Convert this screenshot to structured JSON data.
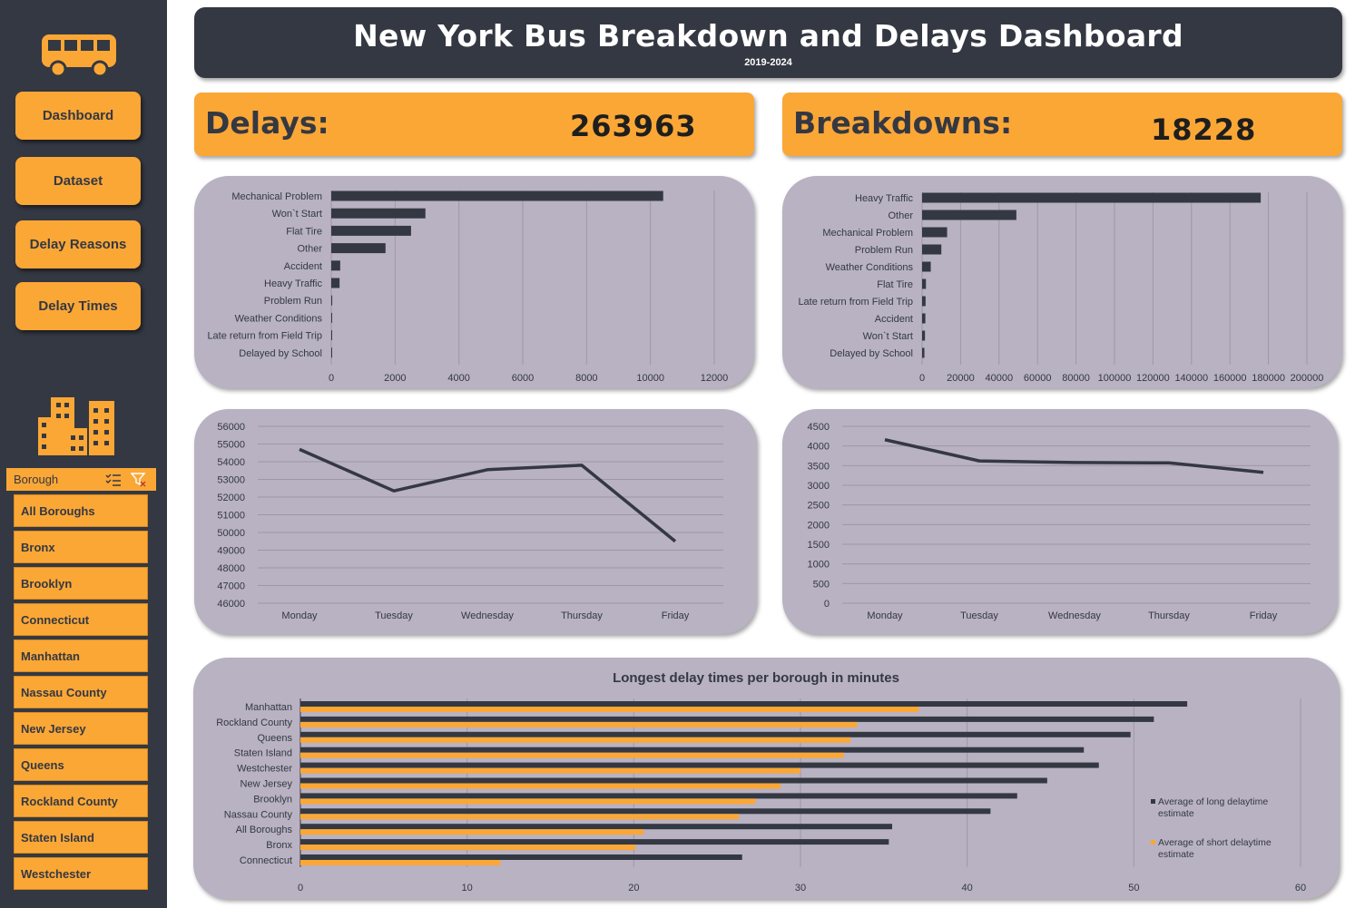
{
  "header": {
    "title": "New York Bus Breakdown and Delays Dashboard",
    "subtitle": "2019-2024"
  },
  "nav": {
    "dashboard": "Dashboard",
    "dataset": "Dataset",
    "delay_reasons": "Delay Reasons",
    "delay_times": "Delay Times"
  },
  "icons": {
    "logo": "bus-icon",
    "city": "buildings-icon",
    "multi_select": "multi-select-icon",
    "clear_filter": "clear-filter-icon"
  },
  "colors": {
    "sidebar": "#343842",
    "accent": "#fba736",
    "panel": "#b8b2c2",
    "series_dark": "#343842"
  },
  "slicer": {
    "title": "Borough",
    "items": [
      "All Boroughs",
      "Bronx",
      "Brooklyn",
      "Connecticut",
      "Manhattan",
      "Nassau County",
      "New Jersey",
      "Queens",
      "Rockland County",
      "Staten Island",
      "Westchester"
    ]
  },
  "kpis": {
    "delays_label": "Delays:",
    "delays_value": "263963",
    "breakdowns_label": "Breakdowns:",
    "breakdowns_value": "18228"
  },
  "chart_data": [
    {
      "type": "bar",
      "orientation": "horizontal",
      "categories": [
        "Mechanical Problem",
        "Won`t Start",
        "Flat Tire",
        "Other",
        "Accident",
        "Heavy Traffic",
        "Problem Run",
        "Weather Conditions",
        "Late return from Field Trip",
        "Delayed by School"
      ],
      "values": [
        10400,
        2950,
        2500,
        1700,
        280,
        260,
        30,
        20,
        15,
        10
      ],
      "xlim": [
        0,
        12000
      ],
      "ticks": [
        0,
        2000,
        4000,
        6000,
        8000,
        10000,
        12000
      ],
      "tick_labels": [
        "0",
        "2000",
        "4000",
        "6000",
        "8000",
        "10000",
        "12000"
      ],
      "grid": true
    },
    {
      "type": "bar",
      "orientation": "horizontal",
      "categories": [
        "Heavy Traffic",
        "Other",
        "Mechanical Problem",
        "Problem Run",
        "Weather Conditions",
        "Flat Tire",
        "Late return from Field Trip",
        "Accident",
        "Won`t Start",
        "Delayed by School"
      ],
      "values": [
        176000,
        49000,
        13000,
        10000,
        4500,
        2000,
        1800,
        1700,
        1500,
        1200
      ],
      "xlim": [
        0,
        200000
      ],
      "ticks": [
        0,
        20000,
        40000,
        60000,
        80000,
        100000,
        120000,
        140000,
        160000,
        180000,
        200000
      ],
      "tick_labels": [
        "0",
        "20000",
        "40000",
        "60000",
        "80000",
        "100000",
        "120000",
        "140000",
        "160000",
        "180000",
        "200000"
      ],
      "grid": true
    },
    {
      "type": "line",
      "categories": [
        "Monday",
        "Tuesday",
        "Wednesday",
        "Thursday",
        "Friday"
      ],
      "values": [
        54700,
        52350,
        53550,
        53800,
        49500
      ],
      "ylim": [
        46000,
        56000
      ],
      "ticks": [
        46000,
        47000,
        48000,
        49000,
        50000,
        51000,
        52000,
        53000,
        54000,
        55000,
        56000
      ],
      "tick_labels": [
        "46000",
        "47000",
        "48000",
        "49000",
        "50000",
        "51000",
        "52000",
        "53000",
        "54000",
        "55000",
        "56000"
      ],
      "grid": true
    },
    {
      "type": "line",
      "categories": [
        "Monday",
        "Tuesday",
        "Wednesday",
        "Thursday",
        "Friday"
      ],
      "values": [
        4160,
        3620,
        3580,
        3570,
        3330
      ],
      "ylim": [
        0,
        4500
      ],
      "ticks": [
        0,
        500,
        1000,
        1500,
        2000,
        2500,
        3000,
        3500,
        4000,
        4500
      ],
      "tick_labels": [
        "0",
        "500",
        "1000",
        "1500",
        "2000",
        "2500",
        "3000",
        "3500",
        "4000",
        "4500"
      ],
      "grid": true
    },
    {
      "type": "bar",
      "orientation": "horizontal",
      "title": "Longest delay times per borough in minutes",
      "categories": [
        "Manhattan",
        "Rockland County",
        "Queens",
        "Staten Island",
        "Westchester",
        "New Jersey",
        "Brooklyn",
        "Nassau County",
        "All Boroughs",
        "Bronx",
        "Connecticut"
      ],
      "series": [
        {
          "name": "Average of long delaytime estimate",
          "color": "#343842",
          "values": [
            53.2,
            51.2,
            49.8,
            47.0,
            47.9,
            44.8,
            43.0,
            41.4,
            35.5,
            35.3,
            26.5
          ]
        },
        {
          "name": "Average of short delaytime estimate",
          "color": "#fba736",
          "values": [
            37.1,
            33.4,
            33.0,
            32.6,
            30.0,
            28.8,
            27.3,
            26.3,
            20.6,
            20.1,
            12.0
          ]
        }
      ],
      "xlim": [
        0,
        60
      ],
      "ticks": [
        0,
        10,
        20,
        30,
        40,
        50,
        60
      ],
      "tick_labels": [
        "0",
        "10",
        "20",
        "30",
        "40",
        "50",
        "60"
      ],
      "legend": "right",
      "legend_lines": [
        [
          "Average of long delaytime",
          "estimate"
        ],
        [
          "Average of short delaytime",
          "estimate"
        ]
      ],
      "grid": true
    }
  ]
}
